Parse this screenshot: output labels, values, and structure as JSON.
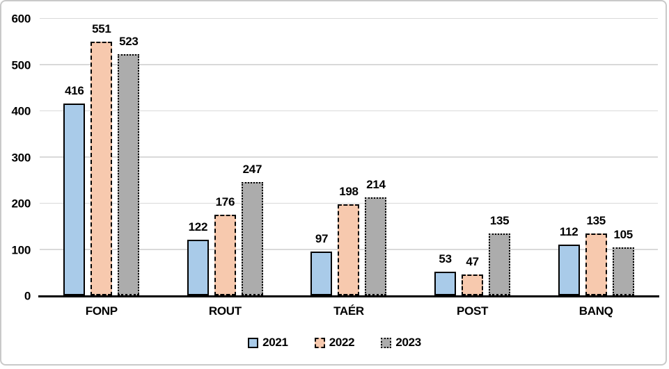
{
  "chart": {
    "background": "#FFFFFF",
    "frame_color": "#C9C9C9",
    "gridline_color": "#D9D9D9",
    "axis_color": "#000000",
    "text_color": "#000000"
  },
  "chart_data": {
    "type": "bar",
    "title": "",
    "xlabel": "",
    "ylabel": "",
    "categories": [
      "FONP",
      "ROUT",
      "TAÉR",
      "POST",
      "BANQ"
    ],
    "series": [
      {
        "name": "2021",
        "values": [
          416,
          122,
          97,
          53,
          112
        ],
        "fill": "#A9CBE9",
        "border_color": "#000000",
        "border_style": "solid"
      },
      {
        "name": "2022",
        "values": [
          551,
          176,
          198,
          47,
          135
        ],
        "fill": "#F7C9AE",
        "border_color": "#000000",
        "border_style": "dashed"
      },
      {
        "name": "2023",
        "values": [
          523,
          247,
          214,
          135,
          105
        ],
        "fill": "#ACACAC",
        "border_color": "#000000",
        "border_style": "dotted"
      }
    ],
    "y_ticks": [
      0,
      100,
      200,
      300,
      400,
      500,
      600
    ],
    "ylim": [
      0,
      600
    ],
    "grid": true,
    "data_labels": true,
    "legend_position": "bottom",
    "legend_labels": [
      "2021",
      "2022",
      "2023"
    ]
  }
}
